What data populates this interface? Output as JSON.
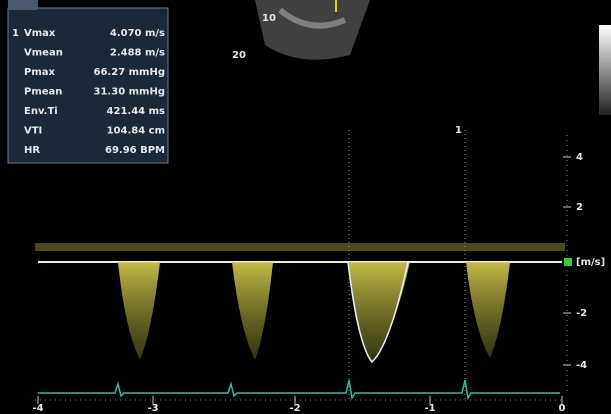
{
  "measurements": {
    "marker": "1",
    "rows": [
      {
        "label": "Vmax",
        "value": "4.070 m/s"
      },
      {
        "label": "Vmean",
        "value": "2.488 m/s"
      },
      {
        "label": "Pmax",
        "value": "66.27 mmHg"
      },
      {
        "label": "Pmean",
        "value": "31.30 mmHg"
      },
      {
        "label": "Env.Ti",
        "value": "421.44 ms"
      },
      {
        "label": "VTI",
        "value": "104.84 cm"
      },
      {
        "label": "HR",
        "value": "69.96 BPM"
      }
    ]
  },
  "velocity_scale": {
    "unit": "[m/s]",
    "ticks": [
      "4",
      "2",
      "-2",
      "-4"
    ]
  },
  "time_scale": {
    "ticks": [
      "-4",
      "-3",
      "-2",
      "-1",
      "0"
    ]
  },
  "cursor_label": "1",
  "sector": {
    "depth_labels": [
      "10",
      "20"
    ]
  }
}
